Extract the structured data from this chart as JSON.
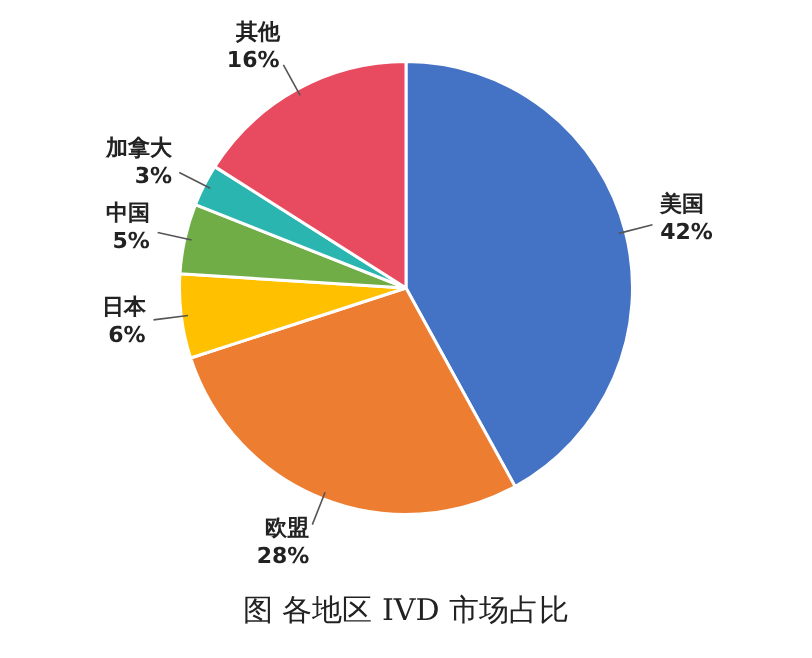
{
  "chart_data": {
    "type": "pie",
    "title": "图 各地区 IVD 市场占比",
    "categories": [
      "美国",
      "欧盟",
      "日本",
      "中国",
      "加拿大",
      "其他"
    ],
    "values": [
      42,
      28,
      6,
      5,
      3,
      16
    ],
    "value_labels": [
      "42%",
      "28%",
      "6%",
      "5%",
      "3%",
      "16%"
    ],
    "colors": [
      "#4472c4",
      "#ed7d31",
      "#ffc000",
      "#70ad47",
      "#2bb5b0",
      "#e84a5f"
    ],
    "legend": false
  }
}
